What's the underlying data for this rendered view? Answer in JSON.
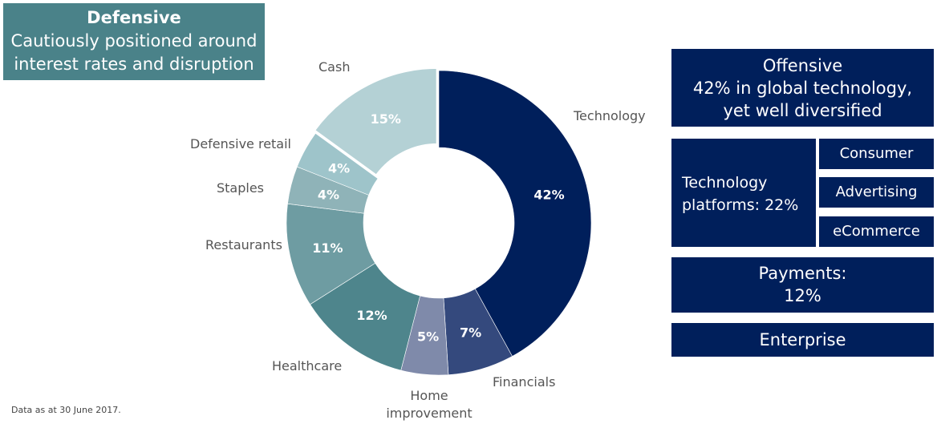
{
  "defensive": {
    "title": "Defensive",
    "subtitle": "Cautiously positioned around interest rates and disruption"
  },
  "offensive": {
    "title": "Offensive",
    "subtitle": "42% in global technology, yet well diversified"
  },
  "platforms": {
    "label": "Technology platforms: 22%",
    "items": [
      "Consumer",
      "Advertising",
      "eCommerce"
    ]
  },
  "payments": "Payments: 12%",
  "enterprise": "Enterprise",
  "footnote": "Data as at 30 June 2017.",
  "chart_data": {
    "type": "donut",
    "categories": [
      "Technology",
      "Financials",
      "Home improvement",
      "Healthcare",
      "Restaurants",
      "Staples",
      "Defensive retail",
      "Cash"
    ],
    "values": [
      42,
      7,
      5,
      12,
      11,
      4,
      4,
      15
    ],
    "labels": [
      "42%",
      "7%",
      "5%",
      "12%",
      "11%",
      "4%",
      "4%",
      "15%"
    ],
    "colors": [
      "#001f5b",
      "#34497d",
      "#7f8aaa",
      "#4e858c",
      "#6e9ca2",
      "#8fb3b8",
      "#9ec4ca",
      "#b4d1d5"
    ],
    "exploded": "Cash"
  }
}
